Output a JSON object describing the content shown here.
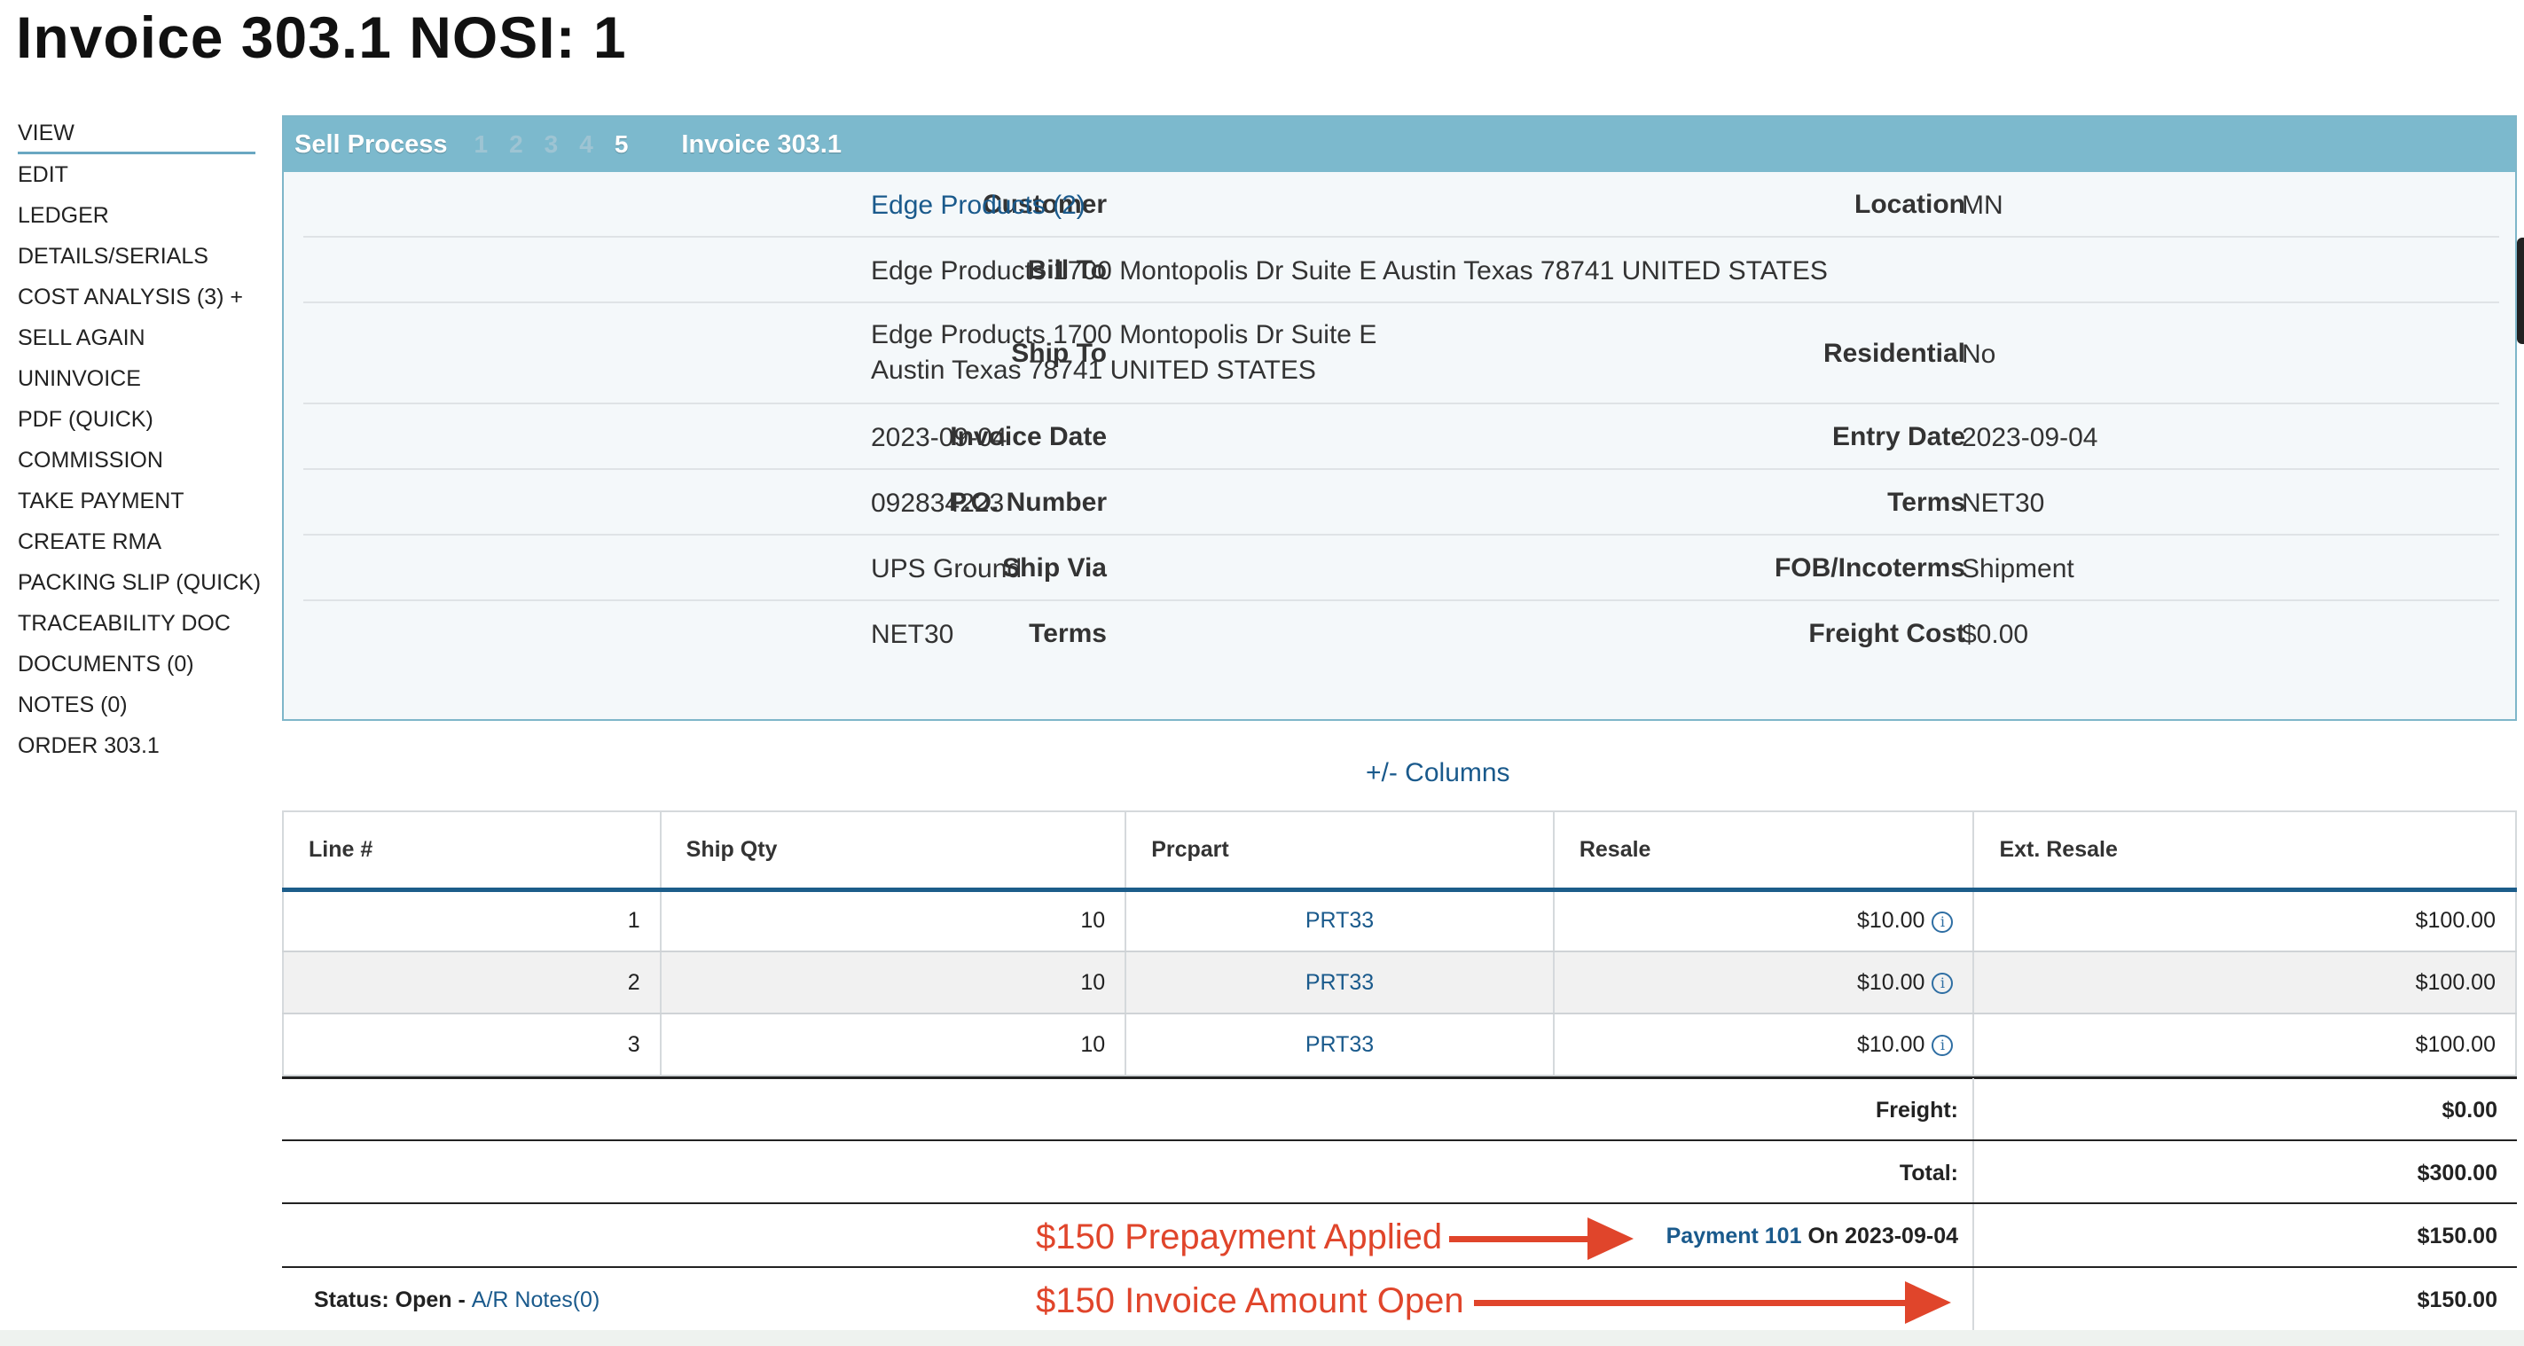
{
  "page_title": "Invoice 303.1 NOSI: 1",
  "sidebar": {
    "items": [
      {
        "label": "VIEW",
        "active": true
      },
      {
        "label": "EDIT"
      },
      {
        "label": "LEDGER"
      },
      {
        "label": "DETAILS/SERIALS"
      },
      {
        "label": "COST ANALYSIS (3) +"
      },
      {
        "label": "SELL AGAIN"
      },
      {
        "label": "UNINVOICE"
      },
      {
        "label": "PDF (QUICK)"
      },
      {
        "label": "COMMISSION"
      },
      {
        "label": "TAKE PAYMENT"
      },
      {
        "label": "CREATE RMA"
      },
      {
        "label": "PACKING SLIP (QUICK)"
      },
      {
        "label": "TRACEABILITY DOC"
      },
      {
        "label": "DOCUMENTS (0)"
      },
      {
        "label": "NOTES (0)"
      },
      {
        "label": "ORDER 303.1"
      }
    ]
  },
  "panel": {
    "title": "Sell Process",
    "steps": [
      "1",
      "2",
      "3",
      "4",
      "5"
    ],
    "current_step": "5",
    "invoice_ref": "Invoice 303.1",
    "fields": {
      "customer_label": "Customer",
      "customer_value": "Edge Products (2)",
      "location_label": "Location",
      "location_value": "MN",
      "bill_to_label": "Bill To",
      "bill_to_value": "Edge Products 1700 Montopolis Dr Suite E Austin Texas 78741 UNITED STATES",
      "ship_to_label": "Ship To",
      "ship_to_line1": "Edge Products 1700 Montopolis Dr Suite E",
      "ship_to_line2": "Austin Texas 78741 UNITED STATES",
      "residential_label": "Residential",
      "residential_value": "No",
      "invoice_date_label": "Invoice Date",
      "invoice_date_value": "2023-09-04",
      "entry_date_label": "Entry Date",
      "entry_date_value": "2023-09-04",
      "po_label": "P.O. Number",
      "po_value": "092834223",
      "terms_right_label": "Terms",
      "terms_right_value": "NET30",
      "ship_via_label": "Ship Via",
      "ship_via_value": "UPS Ground",
      "fob_label": "FOB/Incoterms",
      "fob_value": "Shipment",
      "terms_left_label": "Terms",
      "terms_left_value": "NET30",
      "freight_cost_label": "Freight Cost",
      "freight_cost_value": "$0.00"
    }
  },
  "columns_toggle": "+/- Columns",
  "table": {
    "headers": [
      "Line #",
      "Ship Qty",
      "Prcpart",
      "Resale",
      "Ext. Resale"
    ],
    "rows": [
      {
        "line": "1",
        "qty": "10",
        "part": "PRT33",
        "resale": "$10.00",
        "ext": "$100.00"
      },
      {
        "line": "2",
        "qty": "10",
        "part": "PRT33",
        "resale": "$10.00",
        "ext": "$100.00"
      },
      {
        "line": "3",
        "qty": "10",
        "part": "PRT33",
        "resale": "$10.00",
        "ext": "$100.00"
      }
    ]
  },
  "summary": {
    "freight_label": "Freight:",
    "freight_value": "$0.00",
    "total_label": "Total:",
    "total_value": "$300.00",
    "payment_link": "Payment 101",
    "payment_on": "On 2023-09-04",
    "payment_value": "$150.00",
    "status_label": "Status: Open -",
    "ar_notes_link": "A/R Notes(0)",
    "open_value": "$150.00"
  },
  "annotations": {
    "prepayment": "$150 Prepayment Applied",
    "open_amount": "$150 Invoice Amount Open",
    "color": "#e0452b"
  },
  "info_icon_glyph": "i"
}
